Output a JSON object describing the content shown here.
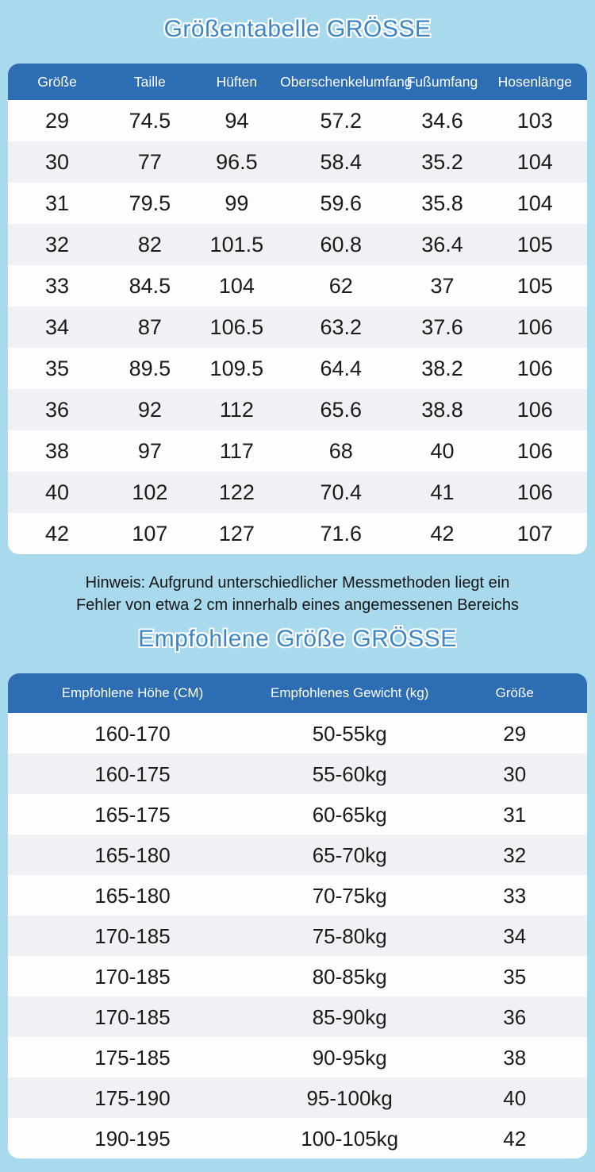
{
  "colors": {
    "page_bg": "#a8d9ec",
    "header_bg": "#2c6db3",
    "title_color": "#3d85c5",
    "stripe_color": "#f0f1f4",
    "row_bg": "#fdfdfe",
    "body_text": "#1b1b1b"
  },
  "note": {
    "line1": "Hinweis: Aufgrund unterschiedlicher Messmethoden liegt ein",
    "line2": "Fehler von etwa 2 cm innerhalb eines angemessenen Bereichs"
  },
  "chart_data": [
    {
      "type": "table",
      "title": "Größentabelle GRÖSSE",
      "columns": [
        "Größe",
        "Taille",
        "Hüften",
        "Oberschenkelumfang",
        "Fußumfang",
        "Hosenlänge"
      ],
      "rows": [
        [
          "29",
          "74.5",
          "94",
          "57.2",
          "34.6",
          "103"
        ],
        [
          "30",
          "77",
          "96.5",
          "58.4",
          "35.2",
          "104"
        ],
        [
          "31",
          "79.5",
          "99",
          "59.6",
          "35.8",
          "104"
        ],
        [
          "32",
          "82",
          "101.5",
          "60.8",
          "36.4",
          "105"
        ],
        [
          "33",
          "84.5",
          "104",
          "62",
          "37",
          "105"
        ],
        [
          "34",
          "87",
          "106.5",
          "63.2",
          "37.6",
          "106"
        ],
        [
          "35",
          "89.5",
          "109.5",
          "64.4",
          "38.2",
          "106"
        ],
        [
          "36",
          "92",
          "112",
          "65.6",
          "38.8",
          "106"
        ],
        [
          "38",
          "97",
          "117",
          "68",
          "40",
          "106"
        ],
        [
          "40",
          "102",
          "122",
          "70.4",
          "41",
          "106"
        ],
        [
          "42",
          "107",
          "127",
          "71.6",
          "42",
          "107"
        ]
      ]
    },
    {
      "type": "table",
      "title": "Empfohlene Größe GRÖSSE",
      "columns": [
        "Empfohlene Höhe (CM)",
        "Empfohlenes Gewicht (kg)",
        "Größe"
      ],
      "rows": [
        [
          "160-170",
          "50-55kg",
          "29"
        ],
        [
          "160-175",
          "55-60kg",
          "30"
        ],
        [
          "165-175",
          "60-65kg",
          "31"
        ],
        [
          "165-180",
          "65-70kg",
          "32"
        ],
        [
          "165-180",
          "70-75kg",
          "33"
        ],
        [
          "170-185",
          "75-80kg",
          "34"
        ],
        [
          "170-185",
          "80-85kg",
          "35"
        ],
        [
          "170-185",
          "85-90kg",
          "36"
        ],
        [
          "175-185",
          "90-95kg",
          "38"
        ],
        [
          "175-190",
          "95-100kg",
          "40"
        ],
        [
          "190-195",
          "100-105kg",
          "42"
        ]
      ]
    }
  ]
}
